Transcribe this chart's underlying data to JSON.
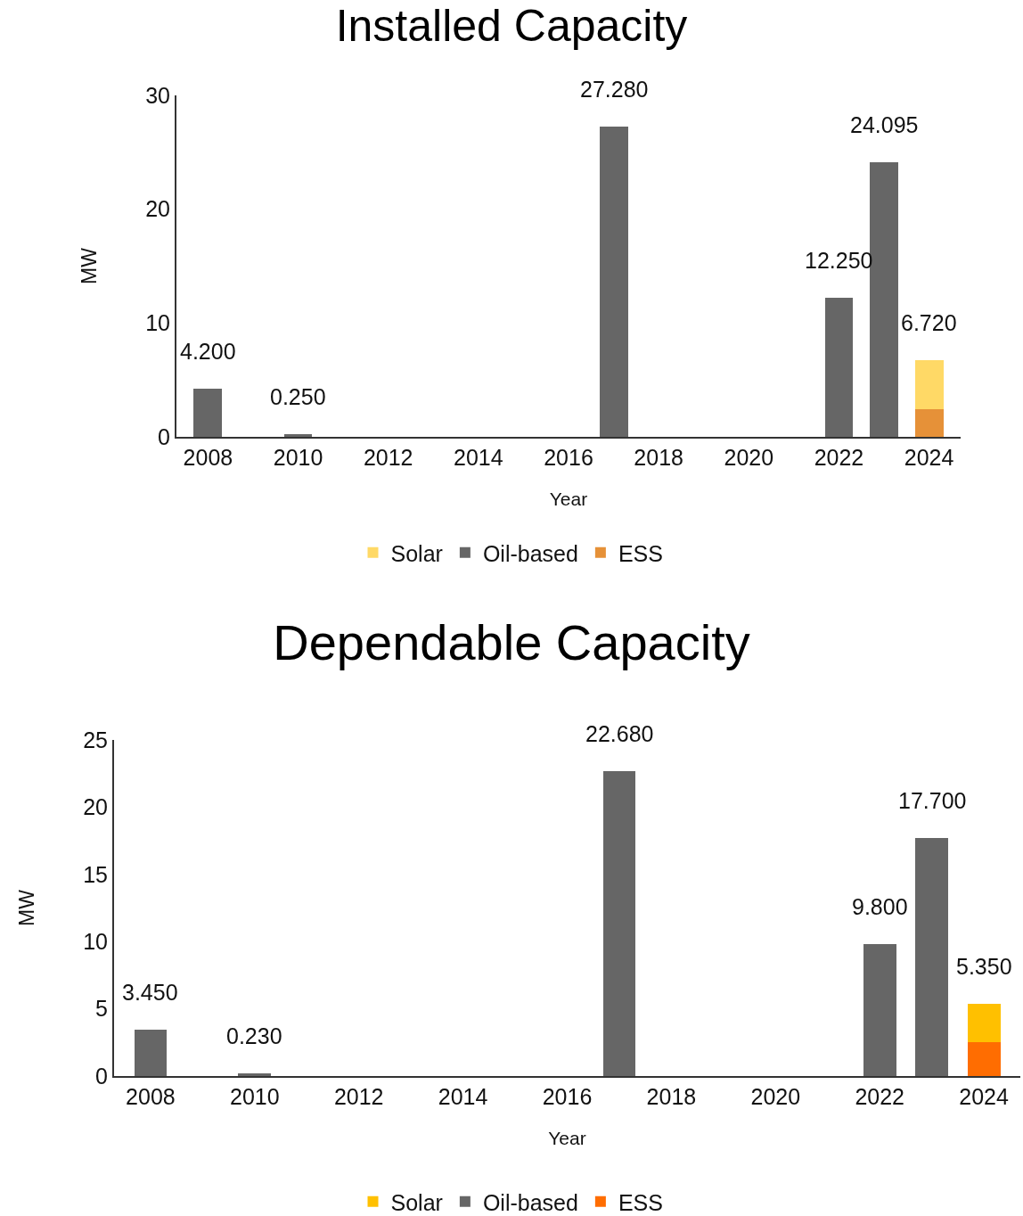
{
  "chart_data": [
    {
      "type": "bar",
      "title": "Installed Capacity",
      "xlabel": "Year",
      "ylabel": "MW",
      "x": [
        2008,
        2010,
        2017,
        2022,
        2023,
        2024
      ],
      "stacked": true,
      "series": [
        {
          "name": "ESS",
          "color": "#e69138",
          "values": [
            null,
            null,
            null,
            null,
            null,
            2.4
          ]
        },
        {
          "name": "Oil-based",
          "color": "#666666",
          "values": [
            4.2,
            0.25,
            27.28,
            12.25,
            24.095,
            null
          ]
        },
        {
          "name": "Solar",
          "color": "#ffd966",
          "values": [
            null,
            null,
            null,
            null,
            null,
            4.32
          ]
        }
      ],
      "totals": [
        "4.200",
        "0.250",
        "27.280",
        "12.250",
        "24.095",
        "6.720"
      ],
      "xlim": [
        2007.3,
        2024.7
      ],
      "xticks": [
        2008,
        2010,
        2012,
        2014,
        2016,
        2018,
        2020,
        2022,
        2024
      ],
      "ylim": [
        0,
        30
      ],
      "yticks": [
        0,
        10,
        20,
        30
      ],
      "legend": "bottom"
    },
    {
      "type": "bar",
      "title": "Dependable Capacity",
      "xlabel": "Year",
      "ylabel": "MW",
      "x": [
        2008,
        2010,
        2017,
        2022,
        2023,
        2024
      ],
      "stacked": true,
      "series": [
        {
          "name": "ESS",
          "color": "#ff6d01",
          "values": [
            null,
            null,
            null,
            null,
            null,
            2.5
          ]
        },
        {
          "name": "Oil-based",
          "color": "#666666",
          "values": [
            3.45,
            0.23,
            22.68,
            9.8,
            17.7,
            null
          ]
        },
        {
          "name": "Solar",
          "color": "#ffc000",
          "values": [
            null,
            null,
            null,
            null,
            null,
            2.85
          ]
        }
      ],
      "totals": [
        "3.450",
        "0.230",
        "22.680",
        "9.800",
        "17.700",
        "5.350"
      ],
      "xlim": [
        2007.3,
        2024.7
      ],
      "xticks": [
        2008,
        2010,
        2012,
        2014,
        2016,
        2018,
        2020,
        2022,
        2024
      ],
      "ylim": [
        0,
        25
      ],
      "yticks": [
        0,
        5,
        10,
        15,
        20,
        25
      ],
      "legend": "bottom"
    }
  ]
}
